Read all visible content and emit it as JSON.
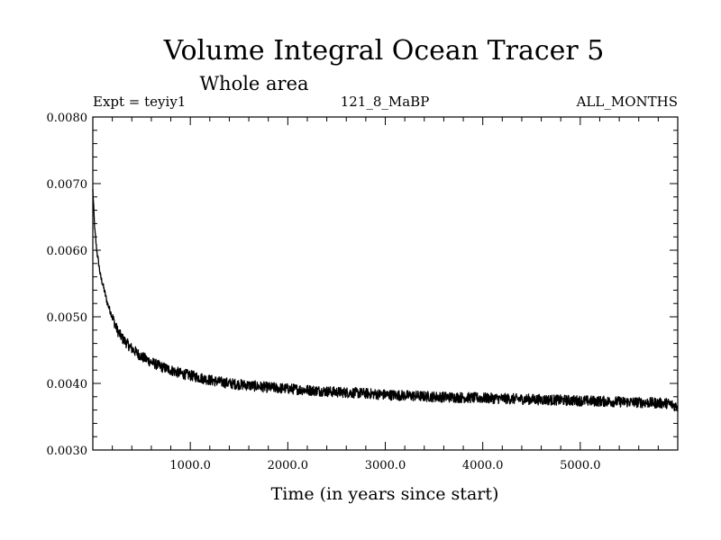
{
  "chart_data": {
    "type": "line",
    "title": "Volume Integral Ocean Tracer 5",
    "subtitle": "Whole area",
    "expt_label": "Expt = teyiy1",
    "run_label": "121_8_MaBP",
    "period_label": "ALL_MONTHS",
    "xlabel": "Time (in years since start)",
    "ylabel": "",
    "xlim": [
      0,
      6000
    ],
    "ylim": [
      0.003,
      0.008
    ],
    "x_ticks": [
      1000,
      2000,
      3000,
      4000,
      5000
    ],
    "x_tick_labels": [
      "1000.0",
      "2000.0",
      "3000.0",
      "4000.0",
      "5000.0"
    ],
    "y_ticks": [
      0.003,
      0.004,
      0.005,
      0.006,
      0.007,
      0.008
    ],
    "y_tick_labels": [
      "0.0030",
      "0.0040",
      "0.0050",
      "0.0060",
      "0.0070",
      "0.0080"
    ],
    "grid": false,
    "series": [
      {
        "x": [
          0,
          10,
          20,
          40,
          60,
          80,
          100,
          150,
          200,
          250,
          300,
          400,
          500,
          600,
          700,
          800,
          900,
          1000,
          1200,
          1400,
          1600,
          1800,
          2000,
          2200,
          2500,
          2800,
          3000,
          3500,
          4000,
          4500,
          5000,
          5500,
          5900,
          6000
        ],
        "y": [
          0.0069,
          0.0066,
          0.0063,
          0.006,
          0.0058,
          0.0056,
          0.0055,
          0.0052,
          0.005,
          0.0048,
          0.00468,
          0.00452,
          0.0044,
          0.00432,
          0.00425,
          0.0042,
          0.00415,
          0.00412,
          0.00405,
          0.004,
          0.00397,
          0.00394,
          0.00392,
          0.0039,
          0.00387,
          0.00385,
          0.00383,
          0.0038,
          0.00378,
          0.00376,
          0.00374,
          0.00372,
          0.0037,
          0.00365
        ],
        "noise": 8e-05,
        "color": "#000000"
      }
    ]
  }
}
